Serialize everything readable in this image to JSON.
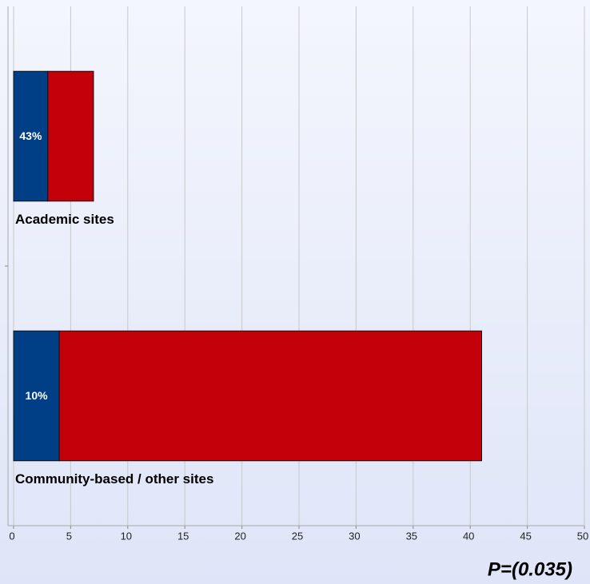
{
  "chart_data": {
    "type": "stacked-barh",
    "categories": [
      "Academic sites",
      "Community-based / other sites"
    ],
    "series": [
      {
        "color": "#003e86",
        "values": [
          3,
          4
        ],
        "share_labels": [
          "43%",
          "10%"
        ]
      },
      {
        "color": "#c4000b",
        "values": [
          4,
          37
        ]
      }
    ],
    "xlim": [
      0,
      50
    ],
    "xticks": [
      0,
      5,
      10,
      15,
      20,
      25,
      30,
      35,
      40,
      45,
      50
    ],
    "grid": true,
    "annotation": "P=(0.035)"
  }
}
